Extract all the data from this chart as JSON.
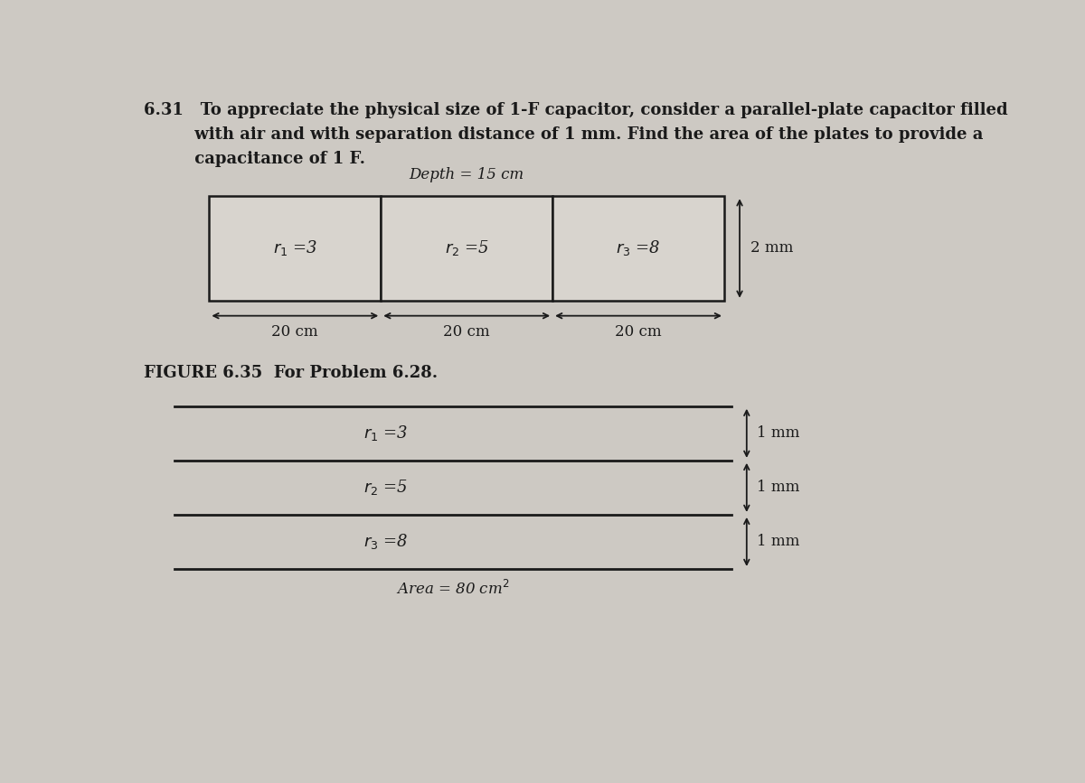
{
  "bg_color": "#cdc9c3",
  "line_color": "#1a1a1a",
  "text_color": "#1a1a1a",
  "problem_line1": "6.31   To appreciate the physical size of 1-F capacitor, consider a parallel-plate capacitor filled",
  "problem_line2": "         with air and with separation distance of 1 mm. Find the area of the plates to provide a",
  "problem_line3": "         capacitance of 1 F.",
  "depth_label": "Depth = 15 cm",
  "section_vals_top": [
    "3",
    "5",
    "8"
  ],
  "width_labels": [
    "20 cm",
    "20 cm",
    "20 cm"
  ],
  "height_label_top": "2 mm",
  "figure_caption": "FIGURE 6.35  For Problem 6.28.",
  "section_vals_bottom": [
    "3",
    "5",
    "8"
  ],
  "height_labels_bottom": [
    "1 mm",
    "1 mm",
    "1 mm"
  ],
  "area_label": "Area = 80 cm$^2$"
}
